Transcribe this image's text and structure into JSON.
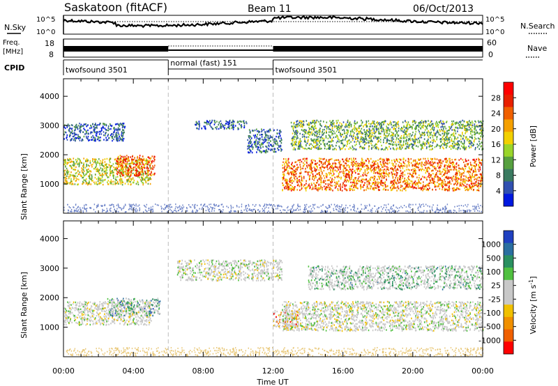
{
  "header": {
    "title": "Saskatoon (fitACF)",
    "beam": "Beam 11",
    "date": "06/Oct/2013"
  },
  "summary": {
    "nsky_label": "N.Sky",
    "nsearch_label": "N.Search",
    "nsky_ticks": [
      "10^5",
      "10^0"
    ],
    "nsearch_ticks": [
      "10^5",
      "10^0"
    ],
    "freq_label": "Freq.",
    "freq_unit": "[MHz]",
    "freq_ticks": [
      "18",
      "8"
    ],
    "nave_label": "Nave",
    "nave_ticks": [
      "60",
      "0"
    ],
    "cpid_label": "CPID",
    "cpid_segments": [
      {
        "label": "twofsound 3501",
        "start_hour": 0,
        "end_hour": 6
      },
      {
        "label": "normal (fast) 151",
        "start_hour": 6,
        "end_hour": 12
      },
      {
        "label": "twofsound 3501",
        "start_hour": 12,
        "end_hour": 24
      }
    ]
  },
  "chart_data": [
    {
      "type": "heatmap",
      "name": "power",
      "ylabel": "Slant Range [km]",
      "ylim": [
        0,
        4600
      ],
      "yticks": [
        1000,
        2000,
        3000,
        4000
      ],
      "xlim": [
        0,
        24
      ],
      "colorbar": {
        "label": "Power [dB]",
        "ticks": [
          "4",
          "8",
          "12",
          "16",
          "20",
          "24",
          "28"
        ],
        "colors": [
          "#0018e0",
          "#3050b0",
          "#3a7a60",
          "#57a040",
          "#9ad52a",
          "#f2d000",
          "#f5a000",
          "#f06000",
          "#e82000",
          "#ff0000"
        ]
      },
      "echo_regions": [
        {
          "x0": 0.0,
          "x1": 5.0,
          "y0": 1000,
          "y1": 1900,
          "level": 0.5
        },
        {
          "x0": 0.0,
          "x1": 3.5,
          "y0": 2500,
          "y1": 3100,
          "level": 0.1
        },
        {
          "x0": 3.0,
          "x1": 5.2,
          "y0": 1300,
          "y1": 2000,
          "level": 0.8
        },
        {
          "x0": 7.5,
          "x1": 10.5,
          "y0": 2900,
          "y1": 3200,
          "level": 0.15
        },
        {
          "x0": 10.5,
          "x1": 12.5,
          "y0": 2100,
          "y1": 2900,
          "level": 0.15
        },
        {
          "x0": 12.5,
          "x1": 24.0,
          "y0": 800,
          "y1": 1900,
          "level": 0.75
        },
        {
          "x0": 13.0,
          "x1": 24.0,
          "y0": 2200,
          "y1": 3200,
          "level": 0.35
        }
      ]
    },
    {
      "type": "heatmap",
      "name": "velocity",
      "ylabel": "Slant Range [km]",
      "ylim": [
        0,
        4600
      ],
      "yticks": [
        1000,
        2000,
        3000,
        4000
      ],
      "xlim": [
        0,
        24
      ],
      "xticks": [
        "00:00",
        "04:00",
        "08:00",
        "12:00",
        "16:00",
        "20:00",
        "00:00"
      ],
      "xlabel": "Time UT",
      "colorbar": {
        "label": "Velocity [m s",
        "label_sup": "-1",
        "label_end": "]",
        "ticks": [
          "1000",
          "500",
          "100",
          "25",
          "-25",
          "-100",
          "-500",
          "-1000"
        ],
        "colors": [
          "#2040c0",
          "#2a6fa0",
          "#2a9060",
          "#50c040",
          "#c8c8c8",
          "#c8c8c8",
          "#f0c000",
          "#f09000",
          "#f06000",
          "#ff0000"
        ]
      },
      "echo_regions": [
        {
          "x0": 0.0,
          "x1": 5.0,
          "y0": 1100,
          "y1": 1900,
          "level": 0.5
        },
        {
          "x0": 2.5,
          "x1": 5.5,
          "y0": 1400,
          "y1": 2000,
          "level": 0.2
        },
        {
          "x0": 6.5,
          "x1": 12.5,
          "y0": 2600,
          "y1": 3300,
          "level": 0.5
        },
        {
          "x0": 12.0,
          "x1": 13.5,
          "y0": 1000,
          "y1": 1600,
          "level": 0.8
        },
        {
          "x0": 12.5,
          "x1": 24.0,
          "y0": 900,
          "y1": 1900,
          "level": 0.5
        },
        {
          "x0": 14.0,
          "x1": 24.0,
          "y0": 2300,
          "y1": 3100,
          "level": 0.35
        }
      ]
    }
  ]
}
